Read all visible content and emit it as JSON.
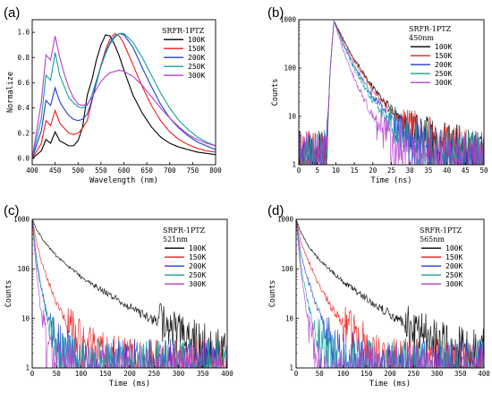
{
  "chart_data": [
    {
      "panel": "(a)",
      "type": "line",
      "title": "",
      "xlabel": "Wavelength (nm)",
      "ylabel": "Normalize",
      "xlim": [
        400,
        800
      ],
      "ylim": [
        -0.05,
        1.1
      ],
      "xticks": [
        "400",
        "450",
        "500",
        "550",
        "600",
        "650",
        "700",
        "750",
        "800"
      ],
      "yticks": [
        "0.0",
        "0.2",
        "0.4",
        "0.6",
        "0.8",
        "1.0"
      ],
      "xtick_values": [
        400,
        450,
        500,
        550,
        600,
        650,
        700,
        750,
        800
      ],
      "ytick_values": [
        0,
        0.2,
        0.4,
        0.6,
        0.8,
        1.0
      ],
      "legend_title": [
        "SRFR-1PTZ"
      ],
      "legend_position": "top-right",
      "series": [
        {
          "name": "100K",
          "color": "#000000",
          "x": [
            400,
            420,
            430,
            440,
            450,
            460,
            470,
            480,
            490,
            500,
            510,
            520,
            530,
            540,
            550,
            560,
            570,
            580,
            590,
            600,
            620,
            640,
            660,
            680,
            700,
            720,
            740,
            760,
            780,
            800
          ],
          "y": [
            0.0,
            0.06,
            0.15,
            0.12,
            0.21,
            0.14,
            0.12,
            0.1,
            0.1,
            0.14,
            0.25,
            0.5,
            0.62,
            0.78,
            0.9,
            0.98,
            0.97,
            0.9,
            0.81,
            0.7,
            0.5,
            0.36,
            0.25,
            0.17,
            0.12,
            0.09,
            0.07,
            0.05,
            0.04,
            0.03
          ]
        },
        {
          "name": "150K",
          "color": "#ee1c1c",
          "x": [
            400,
            420,
            430,
            440,
            450,
            460,
            470,
            480,
            490,
            500,
            510,
            520,
            530,
            540,
            550,
            560,
            570,
            580,
            590,
            600,
            620,
            640,
            660,
            680,
            700,
            720,
            740,
            760,
            780,
            800
          ],
          "y": [
            0.0,
            0.12,
            0.3,
            0.26,
            0.38,
            0.28,
            0.24,
            0.2,
            0.19,
            0.2,
            0.24,
            0.3,
            0.45,
            0.6,
            0.74,
            0.86,
            0.95,
            0.99,
            0.97,
            0.91,
            0.74,
            0.57,
            0.42,
            0.3,
            0.21,
            0.15,
            0.11,
            0.08,
            0.06,
            0.05
          ]
        },
        {
          "name": "200K",
          "color": "#1f3fcf",
          "x": [
            400,
            420,
            430,
            440,
            450,
            460,
            470,
            480,
            490,
            500,
            510,
            520,
            530,
            540,
            550,
            560,
            570,
            580,
            590,
            600,
            620,
            640,
            660,
            680,
            700,
            720,
            740,
            760,
            780,
            800
          ],
          "y": [
            0.0,
            0.22,
            0.46,
            0.42,
            0.56,
            0.45,
            0.39,
            0.34,
            0.31,
            0.3,
            0.31,
            0.35,
            0.46,
            0.6,
            0.73,
            0.84,
            0.92,
            0.97,
            0.99,
            0.98,
            0.88,
            0.72,
            0.57,
            0.43,
            0.32,
            0.24,
            0.18,
            0.13,
            0.1,
            0.07
          ]
        },
        {
          "name": "250K",
          "color": "#11a39a",
          "x": [
            400,
            420,
            430,
            440,
            450,
            460,
            470,
            480,
            490,
            500,
            510,
            520,
            530,
            540,
            550,
            560,
            570,
            580,
            590,
            600,
            620,
            640,
            660,
            680,
            700,
            720,
            740,
            760,
            780,
            800
          ],
          "y": [
            0.0,
            0.32,
            0.66,
            0.62,
            0.84,
            0.66,
            0.57,
            0.48,
            0.44,
            0.41,
            0.4,
            0.42,
            0.5,
            0.62,
            0.73,
            0.83,
            0.91,
            0.96,
            0.99,
            0.99,
            0.92,
            0.8,
            0.66,
            0.52,
            0.4,
            0.3,
            0.23,
            0.17,
            0.13,
            0.1
          ]
        },
        {
          "name": "300K",
          "color": "#b53fd0",
          "x": [
            400,
            420,
            430,
            440,
            450,
            460,
            470,
            480,
            490,
            500,
            510,
            520,
            530,
            540,
            550,
            560,
            570,
            580,
            590,
            600,
            620,
            640,
            660,
            680,
            700,
            720,
            740,
            760,
            780,
            800
          ],
          "y": [
            0.0,
            0.45,
            0.82,
            0.78,
            0.97,
            0.8,
            0.67,
            0.56,
            0.48,
            0.43,
            0.42,
            0.43,
            0.48,
            0.55,
            0.61,
            0.65,
            0.68,
            0.69,
            0.7,
            0.69,
            0.65,
            0.58,
            0.49,
            0.4,
            0.32,
            0.25,
            0.19,
            0.15,
            0.12,
            0.1
          ]
        }
      ]
    },
    {
      "panel": "(b)",
      "type": "line",
      "title": "",
      "xlabel": "Time (ns)",
      "ylabel": "Counts",
      "xlim": [
        0,
        50
      ],
      "ylim": [
        1,
        1000
      ],
      "yscale": "log",
      "xticks": [
        "0",
        "5",
        "10",
        "15",
        "20",
        "25",
        "30",
        "35",
        "40",
        "45",
        "50"
      ],
      "yticks": [
        "1",
        "10",
        "100",
        "1000"
      ],
      "xtick_values": [
        0,
        5,
        10,
        15,
        20,
        25,
        30,
        35,
        40,
        45,
        50
      ],
      "ytick_values": [
        1,
        10,
        100,
        1000
      ],
      "legend_title": [
        "SRFR-1PTZ",
        "450nm"
      ],
      "legend_position": "top-right",
      "series": [
        {
          "name": "100K",
          "color": "#000000",
          "x": [
            0,
            7.5,
            8.5,
            9.5,
            12,
            15,
            20,
            25,
            30,
            35,
            40,
            45,
            50
          ],
          "y": [
            2,
            2,
            100,
            950,
            400,
            150,
            40,
            14,
            6,
            4,
            3,
            2.5,
            2
          ]
        },
        {
          "name": "150K",
          "color": "#ee1c1c",
          "x": [
            0,
            7.5,
            8.5,
            9.5,
            12,
            15,
            20,
            25,
            30,
            35,
            40,
            45,
            50
          ],
          "y": [
            2,
            2,
            100,
            950,
            380,
            140,
            36,
            12,
            6,
            4,
            3,
            2.5,
            2
          ]
        },
        {
          "name": "200K",
          "color": "#1f3fcf",
          "x": [
            0,
            7.5,
            8.5,
            9.5,
            12,
            15,
            20,
            25,
            30,
            35,
            40,
            45,
            50
          ],
          "y": [
            2,
            2,
            100,
            950,
            330,
            110,
            26,
            9,
            4,
            3,
            2.5,
            2,
            2
          ]
        },
        {
          "name": "250K",
          "color": "#11a39a",
          "x": [
            0,
            7.5,
            8.5,
            9.5,
            12,
            15,
            20,
            25,
            30,
            35,
            40,
            45,
            50
          ],
          "y": [
            2,
            2,
            100,
            950,
            300,
            95,
            20,
            7,
            3.5,
            2.5,
            2,
            2,
            2
          ]
        },
        {
          "name": "300K",
          "color": "#b53fd0",
          "x": [
            0,
            7.5,
            8.5,
            9.5,
            12,
            15,
            20,
            25,
            30,
            35,
            40,
            45,
            50
          ],
          "y": [
            2,
            2,
            100,
            950,
            230,
            60,
            10,
            3.5,
            2,
            1.8,
            1.5,
            1.5,
            1.5
          ]
        }
      ]
    },
    {
      "panel": "(c)",
      "type": "line",
      "title": "",
      "xlabel": "Time (ms)",
      "ylabel": "Counts",
      "xlim": [
        0,
        400
      ],
      "ylim": [
        1,
        1000
      ],
      "yscale": "log",
      "xticks": [
        "0",
        "50",
        "100",
        "150",
        "200",
        "250",
        "300",
        "350",
        "400"
      ],
      "yticks": [
        "1",
        "10",
        "100",
        "1000"
      ],
      "xtick_values": [
        0,
        50,
        100,
        150,
        200,
        250,
        300,
        350,
        400
      ],
      "ytick_values": [
        1,
        10,
        100,
        1000
      ],
      "legend_title": [
        "SRFR-1PTZ",
        "521nm"
      ],
      "legend_position": "top-right",
      "series": [
        {
          "name": "100K",
          "color": "#000000",
          "x": [
            0,
            10,
            25,
            50,
            75,
            100,
            150,
            200,
            250,
            300,
            350,
            400
          ],
          "y": [
            1000,
            600,
            350,
            180,
            110,
            70,
            33,
            17,
            9,
            5,
            3.5,
            2.5
          ]
        },
        {
          "name": "150K",
          "color": "#ee1c1c",
          "x": [
            0,
            10,
            25,
            50,
            75,
            100,
            150,
            200,
            250,
            300,
            350,
            400
          ],
          "y": [
            1000,
            300,
            90,
            20,
            7,
            3.5,
            2,
            1.5,
            1.5,
            1.5,
            1.5,
            1.5
          ]
        },
        {
          "name": "200K",
          "color": "#1f3fcf",
          "x": [
            0,
            10,
            25,
            40,
            60,
            80,
            100,
            150,
            200,
            250,
            300,
            350,
            400
          ],
          "y": [
            1000,
            120,
            20,
            6,
            3,
            2,
            1.5,
            1.5,
            1.5,
            1.5,
            1.5,
            1.5,
            1.5
          ]
        },
        {
          "name": "250K",
          "color": "#11a39a",
          "x": [
            0,
            10,
            25,
            40,
            60,
            80,
            100,
            150,
            200,
            250,
            300,
            350,
            400
          ],
          "y": [
            1000,
            110,
            18,
            5,
            2.5,
            2,
            1.5,
            1.5,
            1.5,
            1.5,
            1.5,
            1.5,
            1.5
          ]
        },
        {
          "name": "300K",
          "color": "#b53fd0",
          "x": [
            0,
            10,
            20,
            30,
            45,
            60,
            100,
            150,
            200,
            250,
            300,
            350,
            400
          ],
          "y": [
            1000,
            60,
            10,
            3,
            1.5,
            1.2,
            1.2,
            1.2,
            1.2,
            1.2,
            1.2,
            1.2,
            1.2
          ]
        }
      ]
    },
    {
      "panel": "(d)",
      "type": "line",
      "title": "",
      "xlabel": "Time (ms)",
      "ylabel": "Counts",
      "xlim": [
        0,
        400
      ],
      "ylim": [
        1,
        1000
      ],
      "yscale": "log",
      "xticks": [
        "0",
        "50",
        "100",
        "150",
        "200",
        "250",
        "300",
        "350",
        "400"
      ],
      "yticks": [
        "1",
        "10",
        "100",
        "1000"
      ],
      "xtick_values": [
        0,
        50,
        100,
        150,
        200,
        250,
        300,
        350,
        400
      ],
      "ytick_values": [
        1,
        10,
        100,
        1000
      ],
      "legend_title": [
        "SRFR-1PTZ",
        "565nm"
      ],
      "legend_position": "top-right",
      "series": [
        {
          "name": "100K",
          "color": "#000000",
          "x": [
            0,
            10,
            25,
            50,
            75,
            100,
            150,
            200,
            250,
            300,
            350,
            400
          ],
          "y": [
            1000,
            550,
            300,
            150,
            90,
            55,
            25,
            12,
            6,
            4,
            3,
            2.5
          ]
        },
        {
          "name": "150K",
          "color": "#ee1c1c",
          "x": [
            0,
            10,
            25,
            50,
            75,
            100,
            125,
            150,
            200,
            250,
            300,
            350,
            400
          ],
          "y": [
            1000,
            350,
            150,
            45,
            17,
            8,
            5,
            3,
            2,
            1.5,
            1.5,
            1.5,
            1.5
          ]
        },
        {
          "name": "200K",
          "color": "#1f3fcf",
          "x": [
            0,
            10,
            25,
            50,
            75,
            100,
            125,
            150,
            200,
            250,
            300,
            350,
            400
          ],
          "y": [
            1000,
            200,
            60,
            12,
            4,
            2.5,
            2,
            1.5,
            1.5,
            1.5,
            1.5,
            1.5,
            1.5
          ]
        },
        {
          "name": "250K",
          "color": "#11a39a",
          "x": [
            0,
            10,
            25,
            40,
            60,
            80,
            100,
            150,
            200,
            250,
            300,
            350,
            400
          ],
          "y": [
            1000,
            120,
            20,
            6,
            3,
            2,
            1.5,
            1.5,
            1.5,
            1.5,
            1.5,
            1.5,
            1.5
          ]
        },
        {
          "name": "300K",
          "color": "#b53fd0",
          "x": [
            0,
            10,
            20,
            30,
            45,
            60,
            100,
            150,
            200,
            250,
            300,
            350,
            400
          ],
          "y": [
            1000,
            90,
            18,
            5,
            2,
            1.2,
            1.2,
            1.2,
            1.2,
            1.2,
            1.2,
            1.2,
            1.2
          ]
        }
      ]
    }
  ]
}
